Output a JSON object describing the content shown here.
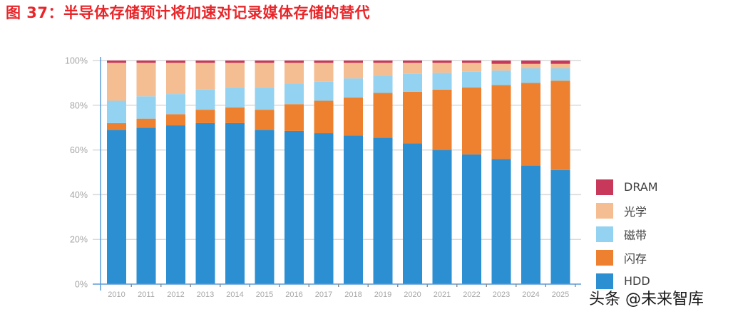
{
  "figure": {
    "title": "图 37：半导体存储预计将加速对记录媒体存储的替代",
    "watermark": "头条 @未来智库"
  },
  "colors": {
    "DRAM": "#c8385a",
    "光学": "#f4bd92",
    "磁带": "#93d2f0",
    "闪存": "#ee8130",
    "HDD": "#2b8fd1",
    "grid": "#d9d9d9",
    "axis": "#5b9bd5"
  },
  "chart_data": {
    "type": "bar",
    "stacked": true,
    "normalized": true,
    "title": "",
    "xlabel": "",
    "ylabel": "",
    "ylim": [
      0,
      100
    ],
    "y_ticks": [
      "0%",
      "20%",
      "40%",
      "60%",
      "80%",
      "100%"
    ],
    "y_tick_values": [
      0,
      20,
      40,
      60,
      80,
      100
    ],
    "grid": true,
    "legend_position": "right",
    "categories": [
      "2010",
      "2011",
      "2012",
      "2013",
      "2014",
      "2015",
      "2016",
      "2017",
      "2018",
      "2019",
      "2020",
      "2021",
      "2022",
      "2023",
      "2024",
      "2025"
    ],
    "series": [
      {
        "name": "HDD",
        "values": [
          69,
          70,
          71,
          72,
          72,
          69,
          68.5,
          67.5,
          66.5,
          65.5,
          63,
          60,
          58,
          56,
          53,
          51
        ]
      },
      {
        "name": "闪存",
        "values": [
          3,
          4,
          5,
          6,
          7,
          9,
          12,
          14.5,
          17,
          20,
          23,
          27,
          30,
          33,
          37,
          40
        ]
      },
      {
        "name": "磁带",
        "values": [
          10,
          10,
          9,
          9,
          9,
          10,
          9,
          8.5,
          8.5,
          7.5,
          8,
          7.5,
          7,
          6.5,
          6.5,
          5.5
        ]
      },
      {
        "name": "光学",
        "values": [
          17,
          15,
          14,
          12,
          11,
          11,
          9.5,
          8.5,
          7,
          6,
          5,
          4.5,
          4,
          3,
          2,
          2
        ]
      },
      {
        "name": "DRAM",
        "values": [
          1,
          1,
          1,
          1,
          1,
          1,
          1,
          1,
          1,
          1,
          1,
          1,
          1,
          1.5,
          1.5,
          1.5
        ]
      }
    ],
    "legend": [
      "DRAM",
      "光学",
      "磁带",
      "闪存",
      "HDD"
    ]
  }
}
